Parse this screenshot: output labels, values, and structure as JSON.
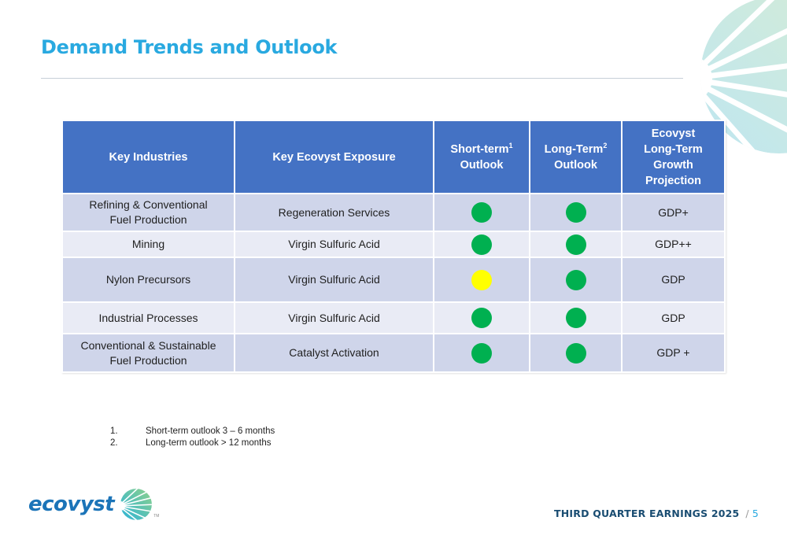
{
  "slide": {
    "title": "Demand Trends and Outlook",
    "footer_label": "THIRD QUARTER EARNINGS 2025",
    "separator": "/",
    "page_number": "5"
  },
  "logo": {
    "text": "ecovyst",
    "trademark": "TM"
  },
  "colors": {
    "title": "#29a9e0",
    "header_bg": "#4472c4",
    "row_dark": "#cfd5ea",
    "row_light": "#e9ebf5",
    "status_green": "#00b050",
    "status_yellow": "#ffff00"
  },
  "table": {
    "headers": [
      {
        "label": "Key Industries"
      },
      {
        "label": "Key Ecovyst Exposure"
      },
      {
        "line1": "Short-term",
        "sup": "1",
        "line2": "Outlook"
      },
      {
        "line1": "Long-Term",
        "sup": "2",
        "line2": "Outlook"
      },
      {
        "line1": "Ecovyst",
        "line2": "Long-Term",
        "line3": "Growth",
        "line4": "Projection"
      }
    ],
    "rows": [
      {
        "industry_l1": "Refining & Conventional",
        "industry_l2": "Fuel Production",
        "exposure": "Regeneration Services",
        "short_term": "green",
        "long_term": "green",
        "growth": "GDP+"
      },
      {
        "industry_l1": "Mining",
        "industry_l2": "",
        "exposure": "Virgin Sulfuric Acid",
        "short_term": "green",
        "long_term": "green",
        "growth": "GDP++"
      },
      {
        "industry_l1": "Nylon  Precursors",
        "industry_l2": "",
        "exposure": "Virgin Sulfuric Acid",
        "short_term": "yellow",
        "long_term": "green",
        "growth": "GDP"
      },
      {
        "industry_l1": "Industrial Processes",
        "industry_l2": "",
        "exposure": "Virgin Sulfuric Acid",
        "short_term": "green",
        "long_term": "green",
        "growth": "GDP"
      },
      {
        "industry_l1": "Conventional & Sustainable",
        "industry_l2": "Fuel Production",
        "exposure": "Catalyst Activation",
        "short_term": "green",
        "long_term": "green",
        "growth": "GDP +"
      }
    ]
  },
  "footnotes": [
    {
      "num": "1.",
      "text": "Short-term outlook 3 – 6 months"
    },
    {
      "num": "2.",
      "text": "Long-term outlook > 12 months"
    }
  ]
}
